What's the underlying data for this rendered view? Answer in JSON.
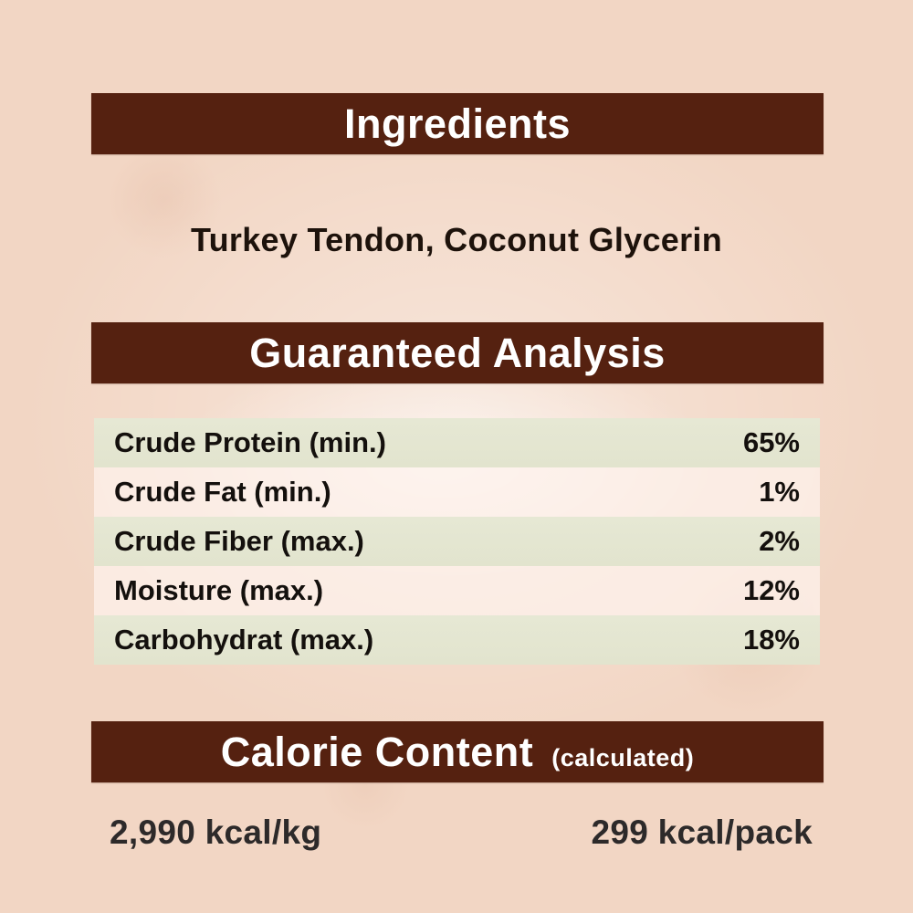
{
  "palette": {
    "header_bar_brown": "#552110",
    "background_peach": "#f2d6c4",
    "row_green": "#e4e6d1",
    "row_pink": "#fbf1ea",
    "header_text": "#ffffff",
    "body_text": "#14100d"
  },
  "ingredients": {
    "header": "Ingredients",
    "items_line": "Turkey Tendon, Coconut Glycerin"
  },
  "guaranteed_analysis": {
    "header": "Guaranteed Analysis",
    "rows": [
      {
        "label": "Crude Protein (min.)",
        "value": "65%"
      },
      {
        "label": "Crude Fat (min.)",
        "value": "1%"
      },
      {
        "label": "Crude Fiber (max.)",
        "value": "2%"
      },
      {
        "label": "Moisture (max.)",
        "value": "12%"
      },
      {
        "label": "Carbohydrat (max.)",
        "value": "18%"
      }
    ]
  },
  "calorie_content": {
    "header": "Calorie Content",
    "qualifier": "(calculated)",
    "per_kg": "2,990 kcal/kg",
    "per_pack": "299 kcal/pack"
  }
}
